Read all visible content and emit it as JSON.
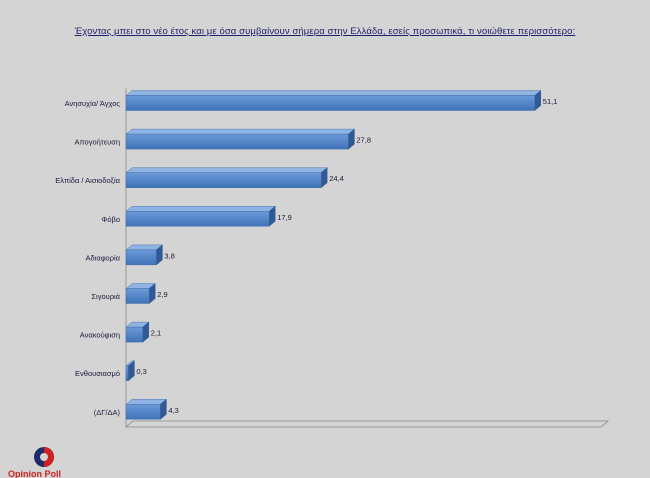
{
  "chart_data": {
    "type": "bar",
    "orientation": "horizontal",
    "title": "Έχοντας μπει στο νέο έτος και με  όσα συμβαίνουν σήμερα στην Ελλάδα, εσείς προσωπικά, τι νοιώθετε περισσότερο:",
    "categories": [
      "Ανησυχία/ Άγχος",
      "Απογοήτευση",
      "Ελπίδα / Αισιοδοξία",
      "Φόβο",
      "Αδιαφορία",
      "Σιγουριά",
      "Ανακούφιση",
      "Ενθουσιασμό",
      "(ΔΓ/ΔΑ)"
    ],
    "values": [
      51.1,
      27.8,
      24.4,
      17.9,
      3.8,
      2.9,
      2.1,
      0.3,
      4.3
    ],
    "value_labels": [
      "51,1",
      "27,8",
      "24,4",
      "17,9",
      "3,8",
      "2,9",
      "2,1",
      "0,3",
      "4,3"
    ],
    "bar_color": "#4f81bd",
    "xlim": [
      0,
      60
    ],
    "grid": false,
    "legend": "none"
  },
  "brand": {
    "name": "Opinion Poll",
    "logo_colors": [
      "#1f2a6b",
      "#cc2222"
    ]
  }
}
